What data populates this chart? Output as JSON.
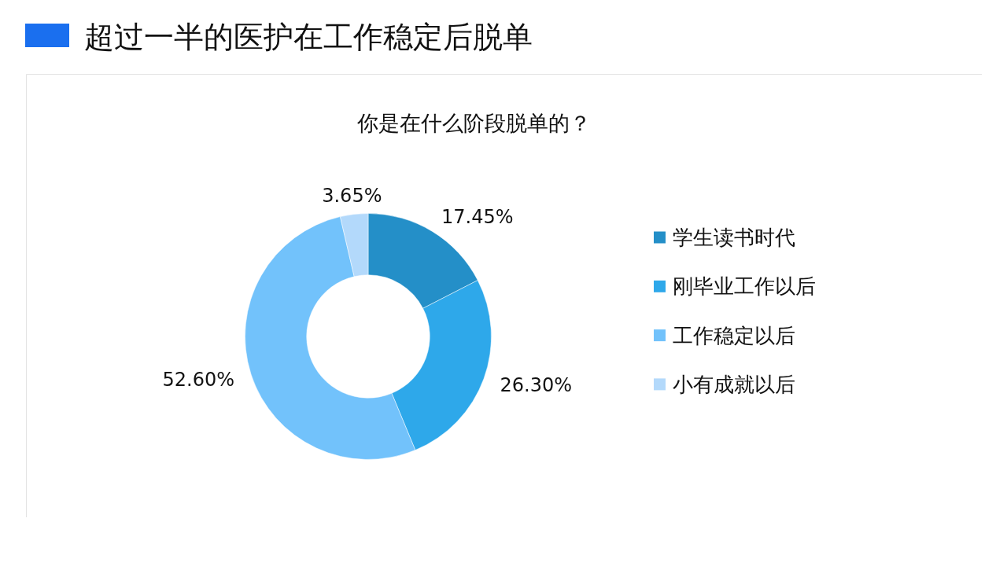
{
  "chart_data": {
    "type": "donut",
    "title": "超过一半的医护在工作稳定后脱单",
    "subtitle": "你是在什么阶段脱单的？",
    "categories": [
      "学生读书时代",
      "刚毕业工作以后",
      "工作稳定以后",
      "小有成就以后"
    ],
    "values": [
      17.45,
      26.3,
      52.6,
      3.65
    ],
    "colors": [
      "#248fc8",
      "#2ea8ea",
      "#72c2fb",
      "#b3d9fb"
    ],
    "value_labels": [
      "17.45%",
      "26.30%",
      "52.60%",
      "3.65%"
    ],
    "legend": "right"
  }
}
